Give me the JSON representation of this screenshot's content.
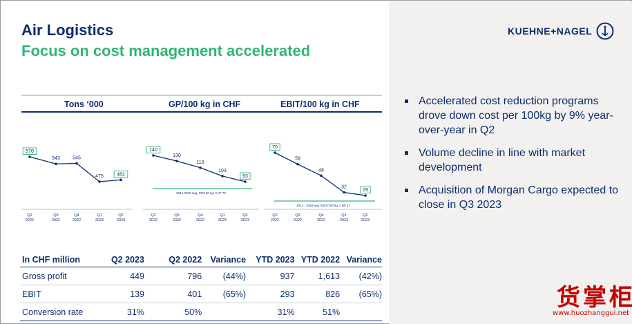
{
  "header": {
    "title": "Air Logistics",
    "subtitle": "Focus on cost management accelerated",
    "logo_text": "KUEHNE+NAGEL"
  },
  "bullets": [
    "Accelerated cost reduction programs drove down cost per 100kg by 9% year-over-year in Q2",
    "Volume decline in line with market development",
    "Acquisition of Morgan Cargo expected to close in Q3 2023"
  ],
  "colors": {
    "navy": "#0d2d6c",
    "green": "#2fb773",
    "panel": "#f2f1ef",
    "watermark_red": "#c40000"
  },
  "chart_data": [
    {
      "type": "line",
      "title": "Tons ‘000",
      "categories": [
        [
          "Q2",
          "2022"
        ],
        [
          "Q3",
          "2022"
        ],
        [
          "Q4",
          "2022"
        ],
        [
          "Q1",
          "2023"
        ],
        [
          "Q2",
          "2023"
        ]
      ],
      "values": [
        570,
        543,
        545,
        475,
        482
      ],
      "ylim": [
        0,
        700
      ]
    },
    {
      "type": "line",
      "title": "GP/100 kg in CHF",
      "categories": [
        [
          "Q2",
          "2022"
        ],
        [
          "Q3",
          "2022"
        ],
        [
          "Q4",
          "2022"
        ],
        [
          "Q1",
          "2023"
        ],
        [
          "Q2",
          "2023"
        ]
      ],
      "values": [
        140,
        130,
        118,
        103,
        93
      ],
      "ylim": [
        0,
        170
      ],
      "reference_line": {
        "label": "2014-2019 avg. GP/100 kg: CHF 73",
        "value": 73
      }
    },
    {
      "type": "line",
      "title": "EBIT/100 kg in CHF",
      "categories": [
        [
          "Q2",
          "2022"
        ],
        [
          "Q3",
          "2022"
        ],
        [
          "Q4",
          "2022"
        ],
        [
          "Q1",
          "2023"
        ],
        [
          "Q2",
          "2023"
        ]
      ],
      "values": [
        70,
        59,
        48,
        32,
        29
      ],
      "ylim": [
        0,
        90
      ],
      "reference_line": {
        "label": "2014 - 2019 avg. EBIT/100 kg: CHF 21",
        "value": 21
      }
    }
  ],
  "table": {
    "headers": [
      "In CHF million",
      "Q2 2023",
      "Q2 2022",
      "Variance",
      "YTD 2023",
      "YTD 2022",
      "Variance"
    ],
    "rows": [
      [
        "Gross profit",
        "449",
        "796",
        "(44%)",
        "937",
        "1,613",
        "(42%)"
      ],
      [
        "EBIT",
        "139",
        "401",
        "(65%)",
        "293",
        "826",
        "(65%)"
      ],
      [
        "Conversion rate",
        "31%",
        "50%",
        "",
        "31%",
        "51%",
        ""
      ]
    ]
  },
  "watermark": {
    "chars": [
      "货",
      "掌",
      "柜"
    ],
    "url": "www.huozhanggui.net"
  }
}
